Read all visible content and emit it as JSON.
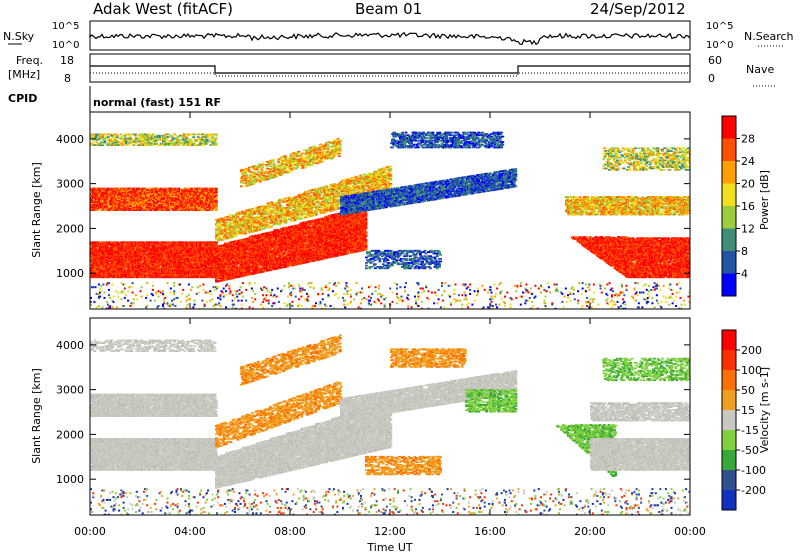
{
  "header": {
    "station": "Adak West (fitACF)",
    "beam": "Beam 01",
    "date": "24/Sep/2012"
  },
  "status_panels": {
    "nsky_label": "N.Sky",
    "nsky_ticks": [
      "10^5",
      "10^0"
    ],
    "nsearch_label": "N.Search",
    "nsearch_ticks": [
      "10^5",
      "10^0"
    ],
    "freq_label": "Freq.",
    "freq_unit": "[MHz]",
    "freq_ticks": [
      "18",
      "8"
    ],
    "nave_label": "Nave",
    "nave_ticks": [
      "60",
      "0"
    ],
    "cpid_label": "CPID",
    "cpid_text": "normal (fast) 151 RF"
  },
  "chart_data": [
    {
      "type": "heatmap",
      "name": "power",
      "xlabel": "Time UT",
      "ylabel": "Slant Range [km]",
      "yticks": [
        1000,
        2000,
        3000,
        4000
      ],
      "ylim": [
        200,
        4600
      ],
      "xlim_hours": [
        0,
        24
      ],
      "colorbar": {
        "title": "Power [dB]",
        "ticks": [
          "28",
          "24",
          "20",
          "16",
          "12",
          "8",
          "4"
        ],
        "colors": [
          "#0000ff",
          "#2455a5",
          "#3f8f78",
          "#9ccd3c",
          "#f0e020",
          "#ffa000",
          "#ff5000",
          "#ff0000"
        ]
      }
    },
    {
      "type": "heatmap",
      "name": "velocity",
      "xlabel": "Time UT",
      "ylabel": "Slant Range [km]",
      "yticks": [
        1000,
        2000,
        3000,
        4000
      ],
      "ylim": [
        200,
        4600
      ],
      "xlim_hours": [
        0,
        24
      ],
      "colorbar": {
        "title": "Velocity [m s-1]",
        "ticks": [
          "200",
          "100",
          "50",
          "15",
          "-15",
          "-50",
          "-100",
          "-200"
        ],
        "colors": [
          "#1030c0",
          "#305090",
          "#38a838",
          "#80d040",
          "#c8c8c0",
          "#f0a020",
          "#ff7000",
          "#ff3000",
          "#ff0000"
        ]
      }
    }
  ],
  "x_axis": {
    "ticks": [
      "00:00",
      "04:00",
      "08:00",
      "12:00",
      "16:00",
      "20:00",
      "00:00"
    ],
    "label": "Time UT"
  }
}
